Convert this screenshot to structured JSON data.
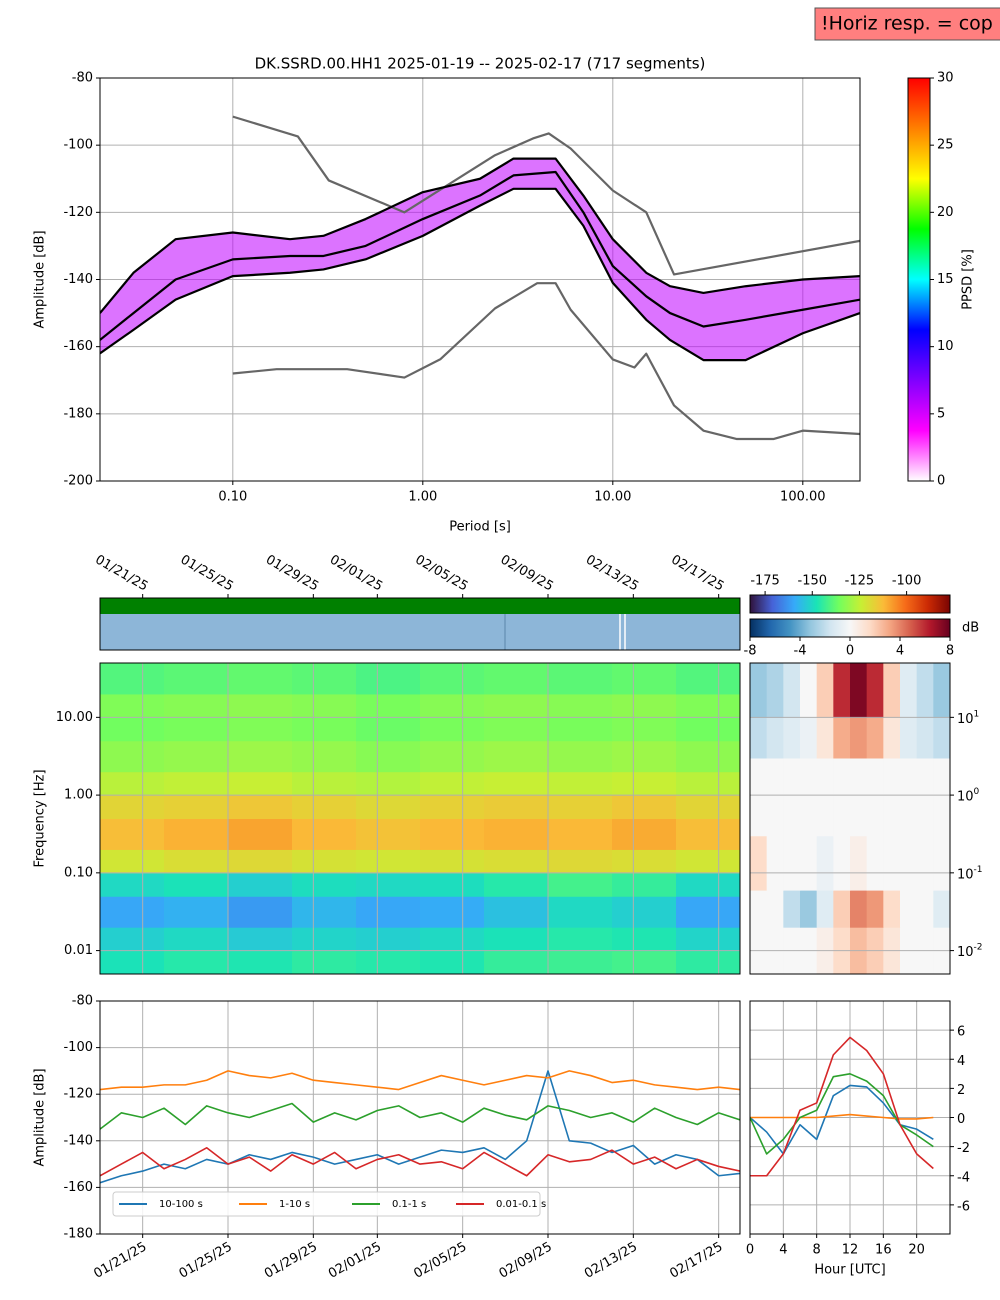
{
  "chart_data": [
    {
      "type": "line",
      "title": "DK.SSRD.00.HH1   2025-01-19 -- 2025-02-17  (717 segments)",
      "xlabel": "Period [s]",
      "ylabel": "Amplitude [dB]",
      "xscale": "log",
      "grid": true,
      "annotation": "!Horiz resp. = cop",
      "annotation_color": "#ff7f7f",
      "xlim": [
        0.02,
        200
      ],
      "ylim": [
        -200,
        -80
      ],
      "xticks": [
        {
          "value": 0.1,
          "label": "0.10"
        },
        {
          "value": 1,
          "label": "1.00"
        },
        {
          "value": 10,
          "label": "10.00"
        },
        {
          "value": 100,
          "label": "100.00"
        }
      ],
      "yticks": [
        -80,
        -100,
        -120,
        -140,
        -160,
        -180,
        -200
      ],
      "band_color": "#c000ff",
      "colormap": [
        "#ffffff",
        "#ff00ff",
        "#8000ff",
        "#0000ff",
        "#00ffff",
        "#00ff00",
        "#ffff00",
        "#ff8000",
        "#ff0000"
      ],
      "colorbar": {
        "label": "PPSD [%]",
        "lim": [
          0,
          30
        ],
        "ticks": [
          0,
          5,
          10,
          15,
          20,
          25,
          30
        ]
      },
      "x": [
        0.02,
        0.03,
        0.05,
        0.1,
        0.2,
        0.3,
        0.5,
        1,
        2,
        3,
        5,
        7,
        10,
        15,
        20,
        30,
        50,
        100,
        200
      ],
      "series": [
        {
          "color": "#666666",
          "x": [
            0.1,
            0.22,
            0.32,
            0.8,
            2.4,
            3.8,
            4.6,
            6,
            10,
            15,
            21,
            200
          ],
          "values": [
            -91.5,
            -97.4,
            -110.5,
            -120,
            -103,
            -98,
            -96.5,
            -101,
            -113.5,
            -120,
            -138.5,
            -128.5
          ]
        },
        {
          "color": "#666666",
          "x": [
            0.1,
            0.17,
            0.4,
            0.8,
            1.24,
            2.4,
            4,
            5,
            6,
            10,
            13,
            15,
            21,
            30,
            45,
            70,
            100,
            200
          ],
          "values": [
            -168,
            -166.7,
            -166.7,
            -169.2,
            -163.7,
            -148.6,
            -141.1,
            -141.1,
            -149,
            -163.8,
            -166.2,
            -162.1,
            -177.5,
            -185,
            -187.5,
            -187.5,
            -185,
            -186
          ]
        },
        {
          "color": "#000000",
          "values": [
            -150,
            -138,
            -128,
            -126,
            -128,
            -127,
            -122,
            -114,
            -110,
            -104,
            -104,
            -115,
            -128,
            -138,
            -142,
            -144,
            -142,
            -140,
            -139
          ]
        },
        {
          "color": "#000000",
          "values": [
            -158,
            -150,
            -140,
            -134,
            -133,
            -133,
            -130,
            -122,
            -115,
            -109,
            -108,
            -120,
            -136,
            -145,
            -150,
            -154,
            -152,
            -149,
            -146
          ]
        },
        {
          "color": "#000000",
          "values": [
            -162,
            -155,
            -146,
            -139,
            -138,
            -137,
            -134,
            -127,
            -118,
            -113,
            -113,
            -124,
            -141,
            -152,
            -158,
            -164,
            -164,
            -156,
            -150
          ]
        }
      ]
    },
    {
      "type": "heatmap",
      "ylabel": "Frequency [Hz]",
      "yscale": "log",
      "grid": true,
      "xlim": [
        "01/19/25",
        "02/18/25"
      ],
      "ylim": [
        0.005,
        50
      ],
      "xticks": [
        "01/21/25",
        "01/25/25",
        "01/29/25",
        "02/01/25",
        "02/05/25",
        "02/09/25",
        "02/13/25",
        "02/17/25"
      ],
      "yticks": [
        {
          "value": 0.01,
          "label": "0.01"
        },
        {
          "value": 0.1,
          "label": "0.10"
        },
        {
          "value": 1,
          "label": "1.00"
        },
        {
          "value": 10,
          "label": "10.00"
        }
      ],
      "colormap": [
        "#30123b",
        "#4662d7",
        "#36aaf9",
        "#1ae4b6",
        "#72fe5e",
        "#c7ef34",
        "#fabb38",
        "#f66b19",
        "#cb2a04",
        "#7a0403"
      ],
      "colorbar": {
        "lim": [
          -183,
          -77
        ],
        "ticks": [
          -175,
          -150,
          -125,
          -100
        ]
      },
      "x_bins": [
        "01/19/25",
        "01/22/25",
        "01/25/25",
        "01/28/25",
        "01/31/25",
        "02/03/25",
        "02/06/25",
        "02/09/25",
        "02/12/25",
        "02/15/25",
        "02/18/25"
      ],
      "y_bins": [
        0.005,
        0.01,
        0.02,
        0.05,
        0.1,
        0.2,
        0.5,
        1,
        2,
        5,
        10,
        20,
        50
      ],
      "z": [
        [
          -148,
          -146,
          -147,
          -145,
          -146,
          -147,
          -144,
          -143,
          -142,
          -145
        ],
        [
          -152,
          -150,
          -153,
          -151,
          -152,
          -150,
          -148,
          -146,
          -147,
          -151
        ],
        [
          -160,
          -158,
          -162,
          -157,
          -160,
          -159,
          -155,
          -150,
          -152,
          -160
        ],
        [
          -150,
          -148,
          -152,
          -149,
          -150,
          -149,
          -146,
          -142,
          -144,
          -150
        ],
        [
          -122,
          -120,
          -119,
          -121,
          -122,
          -121,
          -120,
          -119,
          -120,
          -122
        ],
        [
          -113,
          -111,
          -109,
          -112,
          -114,
          -112,
          -111,
          -112,
          -110,
          -113
        ],
        [
          -118,
          -117,
          -115,
          -117,
          -119,
          -117,
          -116,
          -117,
          -115,
          -118
        ],
        [
          -126,
          -125,
          -124,
          -126,
          -127,
          -125,
          -124,
          -125,
          -124,
          -126
        ],
        [
          -132,
          -131,
          -130,
          -131,
          -133,
          -131,
          -130,
          -131,
          -130,
          -132
        ],
        [
          -136,
          -135,
          -134,
          -135,
          -137,
          -135,
          -134,
          -135,
          -134,
          -136
        ],
        [
          -134,
          -133,
          -132,
          -133,
          -135,
          -133,
          -132,
          -133,
          -132,
          -134
        ],
        [
          -140,
          -139,
          -138,
          -139,
          -141,
          -139,
          -138,
          -139,
          -138,
          -140
        ]
      ]
    },
    {
      "type": "heatmap",
      "yscale": "log",
      "grid": true,
      "xlim": [
        0,
        24
      ],
      "ylim": [
        0.005,
        50
      ],
      "yticks": [
        {
          "value": 0.01,
          "label": "10^-2"
        },
        {
          "value": 0.1,
          "label": "10^-1"
        },
        {
          "value": 1,
          "label": "10^0"
        },
        {
          "value": 10,
          "label": "10^1"
        }
      ],
      "colormap": [
        "#053061",
        "#2166ac",
        "#4393c3",
        "#92c5de",
        "#d1e5f0",
        "#f7f7f7",
        "#fddbc7",
        "#f4a582",
        "#d6604d",
        "#b2182b",
        "#67001f"
      ],
      "colorbar": {
        "label": "dB",
        "lim": [
          -8,
          8
        ],
        "ticks": [
          -8,
          -4,
          0,
          4,
          8
        ]
      },
      "x_bins": [
        0,
        2,
        4,
        6,
        8,
        10,
        12,
        14,
        16,
        18,
        20,
        22,
        24
      ],
      "y_bins": [
        0.005,
        0.02,
        0.06,
        0.3,
        3,
        10,
        50
      ],
      "z": [
        [
          0,
          0,
          0,
          0,
          0.5,
          1.5,
          2.5,
          2,
          1,
          0,
          0,
          0
        ],
        [
          0,
          0,
          -2,
          -3,
          -1,
          2,
          4,
          3.5,
          1.5,
          0,
          0,
          -1
        ],
        [
          1.5,
          0,
          0,
          0,
          -0.5,
          0,
          0.5,
          0,
          0,
          0,
          0,
          0
        ],
        [
          0,
          0,
          0,
          0,
          0,
          0,
          0,
          0,
          0,
          0,
          0,
          0
        ],
        [
          -2,
          -1.5,
          -1,
          -0.5,
          1,
          3,
          3.5,
          3,
          1,
          -1,
          -1.5,
          -2
        ],
        [
          -3,
          -2.5,
          -1.5,
          0,
          2,
          6,
          7.5,
          6,
          2,
          -1,
          -2,
          -3
        ]
      ]
    },
    {
      "type": "line",
      "ylabel": "Amplitude [dB]",
      "grid": true,
      "legend": "lower left",
      "xlim": [
        "01/19/25",
        "02/18/25"
      ],
      "ylim": [
        -180,
        -80
      ],
      "xticks": [
        "01/21/25",
        "01/25/25",
        "01/29/25",
        "02/01/25",
        "02/05/25",
        "02/09/25",
        "02/13/25",
        "02/17/25"
      ],
      "yticks": [
        -80,
        -100,
        -120,
        -140,
        -160,
        -180
      ],
      "x": [
        "01/19/25",
        "01/20/25",
        "01/21/25",
        "01/22/25",
        "01/23/25",
        "01/24/25",
        "01/25/25",
        "01/26/25",
        "01/27/25",
        "01/28/25",
        "01/29/25",
        "01/30/25",
        "01/31/25",
        "02/01/25",
        "02/02/25",
        "02/03/25",
        "02/04/25",
        "02/05/25",
        "02/06/25",
        "02/07/25",
        "02/08/25",
        "02/09/25",
        "02/10/25",
        "02/11/25",
        "02/12/25",
        "02/13/25",
        "02/14/25",
        "02/15/25",
        "02/16/25",
        "02/17/25",
        "02/18/25"
      ],
      "series": [
        {
          "name": "10-100 s",
          "color": "#1f77b4",
          "values": [
            -158,
            -155,
            -153,
            -150,
            -152,
            -148,
            -150,
            -146,
            -148,
            -145,
            -147,
            -150,
            -148,
            -146,
            -150,
            -147,
            -144,
            -145,
            -143,
            -148,
            -140,
            -110,
            -140,
            -141,
            -145,
            -142,
            -150,
            -146,
            -148,
            -155,
            -154
          ]
        },
        {
          "name": "1-10 s",
          "color": "#ff7f0e",
          "values": [
            -118,
            -117,
            -117,
            -116,
            -116,
            -114,
            -110,
            -112,
            -113,
            -111,
            -114,
            -115,
            -116,
            -117,
            -118,
            -115,
            -112,
            -114,
            -116,
            -114,
            -112,
            -113,
            -110,
            -112,
            -115,
            -114,
            -116,
            -117,
            -118,
            -117,
            -118
          ]
        },
        {
          "name": "0.1-1 s",
          "color": "#2ca02c",
          "values": [
            -135,
            -128,
            -130,
            -126,
            -133,
            -125,
            -128,
            -130,
            -127,
            -124,
            -132,
            -128,
            -131,
            -127,
            -125,
            -130,
            -128,
            -132,
            -126,
            -129,
            -131,
            -125,
            -127,
            -130,
            -128,
            -132,
            -126,
            -130,
            -133,
            -128,
            -131
          ]
        },
        {
          "name": "0.01-0.1 s",
          "color": "#d62728",
          "values": [
            -155,
            -150,
            -145,
            -152,
            -148,
            -143,
            -150,
            -147,
            -153,
            -146,
            -150,
            -145,
            -152,
            -148,
            -146,
            -150,
            -149,
            -152,
            -145,
            -150,
            -155,
            -146,
            -149,
            -148,
            -144,
            -150,
            -147,
            -152,
            -148,
            -151,
            -153
          ]
        }
      ]
    },
    {
      "type": "line",
      "xlabel": "Hour [UTC]",
      "grid": true,
      "xlim": [
        0,
        24
      ],
      "ylim": [
        -8,
        8
      ],
      "xticks": [
        0,
        4,
        8,
        12,
        16,
        20
      ],
      "yticks": [
        -6,
        -4,
        -2,
        0,
        2,
        4,
        6
      ],
      "x": [
        0,
        2,
        4,
        6,
        8,
        10,
        12,
        14,
        16,
        18,
        20,
        22
      ],
      "series": [
        {
          "color": "#1f77b4",
          "values": [
            0,
            -1,
            -2.5,
            -0.5,
            -1.5,
            1.5,
            2.2,
            2.1,
            1,
            -0.5,
            -0.8,
            -1.5
          ]
        },
        {
          "color": "#ff7f0e",
          "values": [
            0,
            0,
            0,
            0,
            0,
            0.1,
            0.2,
            0.1,
            0,
            -0.1,
            -0.1,
            0
          ]
        },
        {
          "color": "#2ca02c",
          "values": [
            0,
            -2.5,
            -1.5,
            0,
            0.5,
            2.8,
            3,
            2.5,
            1.5,
            -0.5,
            -1.2,
            -2
          ]
        },
        {
          "color": "#d62728",
          "values": [
            -4,
            -4,
            -2.5,
            0.5,
            1,
            4.3,
            5.5,
            4.6,
            3,
            -0.5,
            -2.5,
            -3.5
          ]
        }
      ]
    }
  ]
}
